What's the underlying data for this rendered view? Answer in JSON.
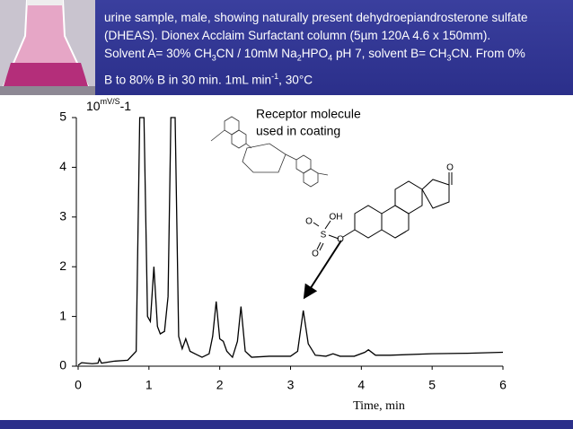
{
  "banner": {
    "lines": [
      [
        {
          "text": "urine sample, male, showing naturally present dehydroepiandrosterone sulfate"
        }
      ],
      [
        {
          "text": "(DHEAS). Dionex Acclaim Surfactant column (5µm 120A 4.6 x 150mm)."
        }
      ],
      [
        {
          "text": "Solvent A= 30% CH"
        },
        {
          "sub": "3"
        },
        {
          "text": "CN / 10mM Na"
        },
        {
          "sub": "2"
        },
        {
          "text": "HPO"
        },
        {
          "sub": "4"
        },
        {
          "text": " pH 7, solvent B= CH"
        },
        {
          "sub": "3"
        },
        {
          "text": "CN. From 0%"
        }
      ],
      [
        {
          "text": "B to 80% B in 30 min. 1mL min"
        },
        {
          "sup": "-1"
        },
        {
          "text": ", 30°C"
        }
      ]
    ]
  },
  "annotation": {
    "lines": [
      "Receptor molecule",
      "used in coating"
    ]
  },
  "structure_labels": {
    "ketone": "O",
    "hydroxyl": "OH",
    "sulfur": "S",
    "oxygen_top": "O",
    "oxygen_bottom": "O",
    "oxygen_ester": "O"
  },
  "chart_data": {
    "type": "line",
    "y_label": {
      "base": "10",
      "sup": "mV/S",
      "suffix": "-1"
    },
    "x_label": "Time, min",
    "xlim": [
      0,
      6
    ],
    "xticks": [
      0,
      1,
      2,
      3,
      4,
      5,
      6
    ],
    "ylim": [
      0,
      5
    ],
    "yticks": [
      0,
      1,
      2,
      3,
      4,
      5
    ],
    "series": [
      {
        "color": "#000000",
        "x": [
          0,
          0.05,
          0.2,
          0.28,
          0.3,
          0.33,
          0.5,
          0.7,
          0.82,
          0.87,
          0.93,
          0.98,
          1.02,
          1.07,
          1.12,
          1.16,
          1.22,
          1.27,
          1.31,
          1.37,
          1.42,
          1.47,
          1.52,
          1.58,
          1.65,
          1.75,
          1.85,
          1.9,
          1.95,
          2.0,
          2.05,
          2.1,
          2.18,
          2.25,
          2.3,
          2.36,
          2.45,
          2.7,
          3.0,
          3.1,
          3.18,
          3.25,
          3.35,
          3.5,
          3.6,
          3.7,
          3.9,
          4.05,
          4.1,
          4.2,
          4.4,
          5.0,
          5.5,
          6.0
        ],
        "values": [
          0.02,
          0.07,
          0.05,
          0.06,
          0.15,
          0.06,
          0.1,
          0.12,
          0.3,
          5,
          5,
          1.0,
          0.9,
          2.0,
          0.8,
          0.65,
          0.7,
          1.4,
          5,
          5,
          0.6,
          0.35,
          0.55,
          0.3,
          0.25,
          0.18,
          0.25,
          0.6,
          1.3,
          0.55,
          0.5,
          0.3,
          0.18,
          0.5,
          1.2,
          0.3,
          0.18,
          0.2,
          0.2,
          0.3,
          1.12,
          0.45,
          0.22,
          0.2,
          0.25,
          0.2,
          0.2,
          0.28,
          0.33,
          0.22,
          0.22,
          0.25,
          0.26,
          0.28
        ]
      }
    ]
  }
}
